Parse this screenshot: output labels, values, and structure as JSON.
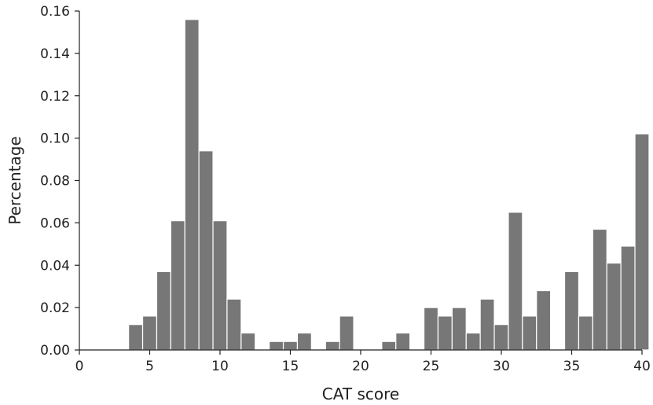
{
  "chart_data": {
    "type": "bar",
    "xlabel": "CAT score",
    "ylabel": "Percentage",
    "xlim": [
      0,
      40
    ],
    "ylim": [
      0,
      0.16
    ],
    "xticks": [
      0,
      5,
      10,
      15,
      20,
      25,
      30,
      35,
      40
    ],
    "xtick_labels": [
      "0",
      "5",
      "10",
      "15",
      "20",
      "25",
      "30",
      "35",
      "40"
    ],
    "yticks": [
      0,
      0.02,
      0.04,
      0.06,
      0.08,
      0.1,
      0.12,
      0.14,
      0.16
    ],
    "ytick_labels": [
      "0.00",
      "0.02",
      "0.04",
      "0.06",
      "0.08",
      "0.10",
      "0.12",
      "0.14",
      "0.16"
    ],
    "bar_color": "#777777",
    "bin_width": 0.9,
    "x": [
      4,
      5,
      6,
      7,
      8,
      9,
      10,
      11,
      12,
      13,
      14,
      15,
      16,
      17,
      18,
      19,
      20,
      21,
      22,
      23,
      24,
      25,
      26,
      27,
      28,
      29,
      30,
      31,
      32,
      33,
      34,
      35,
      36,
      37,
      38,
      39,
      40
    ],
    "values": [
      0.012,
      0.016,
      0.037,
      0.061,
      0.156,
      0.094,
      0.061,
      0.024,
      0.008,
      0.0,
      0.004,
      0.004,
      0.008,
      0.0,
      0.004,
      0.016,
      0.0,
      0.0,
      0.004,
      0.008,
      0.0,
      0.02,
      0.016,
      0.02,
      0.008,
      0.024,
      0.012,
      0.065,
      0.016,
      0.028,
      0.0,
      0.037,
      0.016,
      0.057,
      0.041,
      0.049,
      0.102
    ],
    "grid": false
  }
}
